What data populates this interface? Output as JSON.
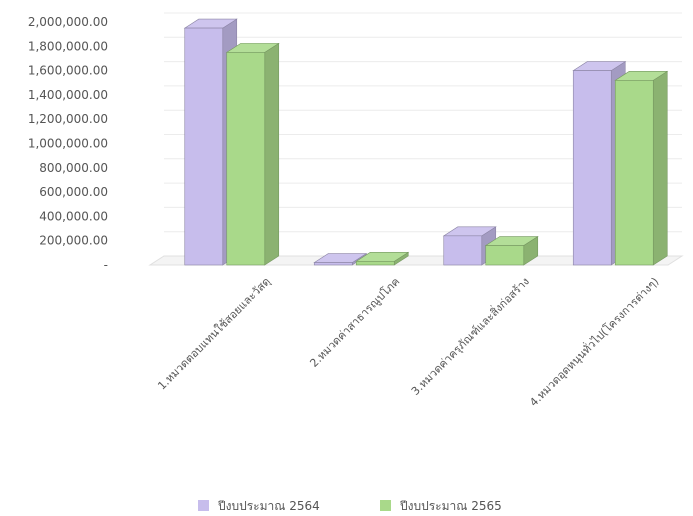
{
  "chart_data": {
    "type": "bar",
    "categories": [
      "1.หมวดตอบแทนใช้สอยและวัสดุ",
      "2.หมวดค่าสาธารณูปโภค",
      "3.หมวดค่าครุภัณฑ์และสิ่งก่อสร้าง",
      "4.หมวดอุดหนุนทั่วไป(โครงการต่างๆ)"
    ],
    "series": [
      {
        "name": "ปีงบประมาณ 2564",
        "values": [
          1950000,
          20000,
          240000,
          1600000
        ],
        "color": "#c7bdec"
      },
      {
        "name": "ปีงบประมาณ 2565",
        "values": [
          1750000,
          30000,
          160000,
          1520000
        ],
        "color": "#a9d98a"
      }
    ],
    "yticks": [
      "2,000,000.00",
      "1,800,000.00",
      "1,600,000.00",
      "1,400,000.00",
      "1,200,000.00",
      "1,000,000.00",
      "800,000.00",
      "600,000.00",
      "400,000.00",
      "200,000.00",
      "-"
    ],
    "ylim": [
      0,
      2000000
    ],
    "legend_position": "bottom",
    "grid": true
  }
}
